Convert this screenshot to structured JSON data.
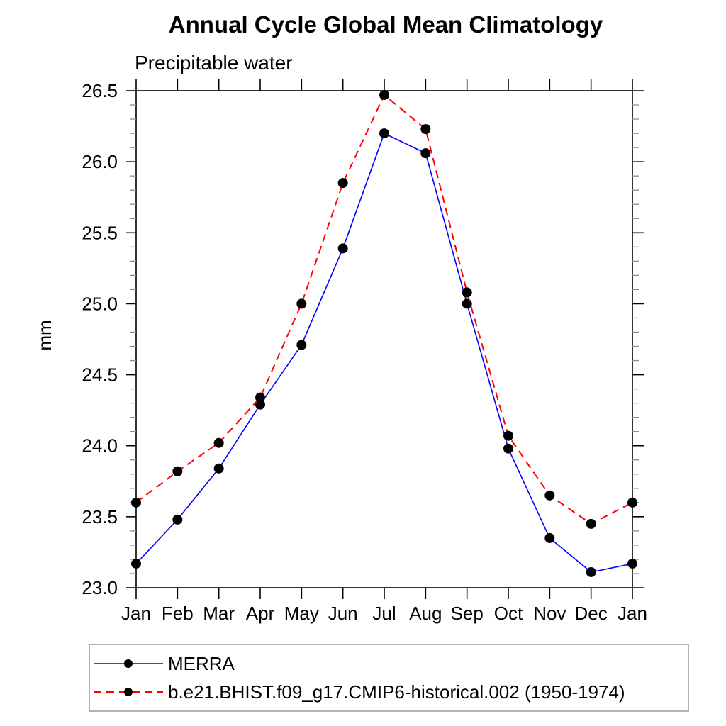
{
  "chart_data": {
    "type": "line",
    "title": "Annual Cycle Global Mean Climatology",
    "subtitle": "Precipitable water",
    "ylabel": "mm",
    "xlabel": "",
    "categories": [
      "Jan",
      "Feb",
      "Mar",
      "Apr",
      "May",
      "Jun",
      "Jul",
      "Aug",
      "Sep",
      "Oct",
      "Nov",
      "Dec",
      "Jan"
    ],
    "ylim": [
      23.0,
      26.5
    ],
    "y_major_step": 0.5,
    "y_minor_step": 0.1,
    "y_tick_labels": [
      "23.0",
      "23.5",
      "24.0",
      "24.5",
      "25.0",
      "25.5",
      "26.0",
      "26.5"
    ],
    "grid": false,
    "frame": "box-with-outward-ticks",
    "axis_color": "#000000",
    "minor_tick_color": "#8c8c8c",
    "legend_position": "bottom-left-box",
    "series": [
      {
        "name": "MERRA",
        "color": "#0000ff",
        "line_style": "solid",
        "marker": "filled-circle",
        "marker_color": "#000000",
        "values": [
          23.17,
          23.48,
          23.84,
          24.29,
          24.71,
          25.39,
          26.2,
          26.06,
          25.0,
          23.98,
          23.35,
          23.11,
          23.17
        ]
      },
      {
        "name": "b.e21.BHIST.f09_g17.CMIP6-historical.002 (1950-1974)",
        "color": "#ff0000",
        "line_style": "dashed",
        "marker": "filled-circle",
        "marker_color": "#000000",
        "values": [
          23.6,
          23.82,
          24.02,
          24.34,
          25.0,
          25.85,
          26.47,
          26.23,
          25.08,
          24.07,
          23.65,
          23.45,
          23.6
        ]
      }
    ]
  }
}
